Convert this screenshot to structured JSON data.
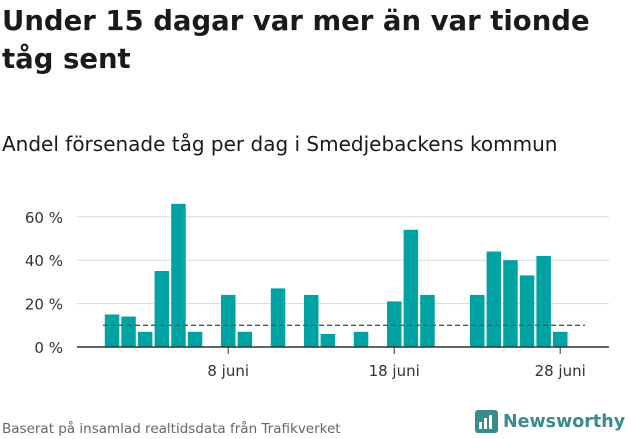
{
  "title": "Under 15 dagar var mer än var tionde tåg sent",
  "subtitle": "Andel försenade tåg per dag i Smedjebackens kommun",
  "source": "Baserat på insamlad realtidsdata från Trafikverket",
  "brand": {
    "name": "Newsworthy",
    "icon": "newsworthy-logo-icon",
    "color": "#3a8c8a"
  },
  "colors": {
    "bar": "#00a3a3",
    "threshold": "#555555",
    "grid": "#d9d9d9",
    "axis": "#333333"
  },
  "chart_data": {
    "type": "bar",
    "ylabel": "",
    "xlabel": "",
    "ylim": [
      0,
      70
    ],
    "yticks": [
      0,
      20,
      40,
      60
    ],
    "ytick_labels": [
      "0 %",
      "20 %",
      "40 %",
      "60 %"
    ],
    "x_start_day": 1,
    "xticks": [
      8,
      18,
      28
    ],
    "xtick_labels": [
      "8 juni",
      "18 juni",
      "28 juni"
    ],
    "threshold": 10,
    "categories": [
      "1 juni",
      "2 juni",
      "3 juni",
      "4 juni",
      "5 juni",
      "6 juni",
      "7 juni",
      "8 juni",
      "9 juni",
      "10 juni",
      "11 juni",
      "12 juni",
      "13 juni",
      "14 juni",
      "15 juni",
      "16 juni",
      "17 juni",
      "18 juni",
      "19 juni",
      "20 juni",
      "21 juni",
      "22 juni",
      "23 juni",
      "24 juni",
      "25 juni",
      "26 juni",
      "27 juni",
      "28 juni",
      "29 juni"
    ],
    "values": [
      15,
      14,
      7,
      35,
      66,
      7,
      null,
      24,
      7,
      null,
      27,
      null,
      24,
      6,
      null,
      7,
      null,
      21,
      54,
      24,
      null,
      null,
      24,
      44,
      40,
      33,
      42,
      7,
      null
    ],
    "grid": true
  }
}
